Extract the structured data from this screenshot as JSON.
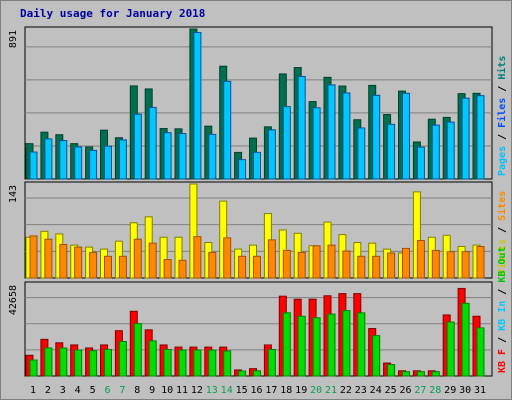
{
  "chart_data": [
    {
      "type": "bar",
      "title": "Daily usage for January 2018",
      "categories": [
        "1",
        "2",
        "3",
        "4",
        "5",
        "6",
        "7",
        "8",
        "9",
        "10",
        "11",
        "12",
        "13",
        "14",
        "15",
        "16",
        "17",
        "18",
        "19",
        "20",
        "21",
        "22",
        "23",
        "24",
        "25",
        "26",
        "27",
        "28",
        "29",
        "30",
        "31"
      ],
      "weekend_days": [
        "6",
        "7",
        "13",
        "14",
        "20",
        "21",
        "27",
        "28"
      ],
      "ymax_label": "891",
      "ylim": [
        0,
        891
      ],
      "series": [
        {
          "name": "Pages",
          "color": "#006f4f",
          "values": [
            210,
            278,
            263,
            210,
            190,
            290,
            245,
            553,
            535,
            300,
            298,
            891,
            314,
            670,
            158,
            243,
            310,
            624,
            662,
            460,
            604,
            552,
            352,
            556,
            383,
            522,
            220,
            355,
            366,
            507,
            509
          ]
        },
        {
          "name": "Files",
          "color": "#00c8ff",
          "values": [
            160,
            238,
            228,
            190,
            170,
            195,
            232,
            385,
            425,
            275,
            270,
            870,
            265,
            580,
            115,
            158,
            292,
            430,
            609,
            423,
            559,
            511,
            303,
            497,
            325,
            509,
            189,
            320,
            338,
            480,
            495
          ]
        }
      ],
      "legend": [
        {
          "text": "Pages",
          "color": "#00bfff"
        },
        {
          "text": " / ",
          "color": "#000000"
        },
        {
          "text": "Files",
          "color": "#0050ff"
        },
        {
          "text": " / ",
          "color": "#000000"
        },
        {
          "text": "Hits",
          "color": "#008080"
        }
      ]
    },
    {
      "type": "bar",
      "categories": [
        "1",
        "2",
        "3",
        "4",
        "5",
        "6",
        "7",
        "8",
        "9",
        "10",
        "11",
        "12",
        "13",
        "14",
        "15",
        "16",
        "17",
        "18",
        "19",
        "20",
        "21",
        "22",
        "23",
        "24",
        "25",
        "26",
        "27",
        "28",
        "29",
        "30",
        "31"
      ],
      "ymax_label": "143",
      "ylim": [
        0,
        143
      ],
      "series": [
        {
          "name": "Visits",
          "color": "#ffff00",
          "values": [
            62,
            71,
            67,
            50,
            47,
            44,
            56,
            84,
            93,
            62,
            62,
            143,
            54,
            117,
            44,
            50,
            98,
            73,
            68,
            49,
            85,
            66,
            54,
            53,
            44,
            38,
            131,
            62,
            65,
            48,
            50
          ]
        },
        {
          "name": "Sites",
          "color": "#ff8800",
          "values": [
            64,
            59,
            51,
            47,
            39,
            33,
            33,
            59,
            53,
            28,
            27,
            63,
            39,
            61,
            33,
            33,
            58,
            42,
            39,
            49,
            50,
            41,
            33,
            33,
            38,
            45,
            57,
            42,
            40,
            40,
            48
          ]
        }
      ],
      "legend": [
        {
          "text": "Visits",
          "color": "#c8c800"
        },
        {
          "text": " / ",
          "color": "#000000"
        },
        {
          "text": "Sites",
          "color": "#ff8800"
        }
      ]
    },
    {
      "type": "bar",
      "categories": [
        "1",
        "2",
        "3",
        "4",
        "5",
        "6",
        "7",
        "8",
        "9",
        "10",
        "11",
        "12",
        "13",
        "14",
        "15",
        "16",
        "17",
        "18",
        "19",
        "20",
        "21",
        "22",
        "23",
        "24",
        "25",
        "26",
        "27",
        "28",
        "29",
        "30",
        "31"
      ],
      "ymax_label": "42658",
      "ylim": [
        0,
        42658
      ],
      "series": [
        {
          "name": "KB F",
          "color": "#ff0000",
          "values": [
            9600,
            17000,
            15400,
            14400,
            13000,
            14400,
            21000,
            30000,
            21400,
            14400,
            13400,
            13400,
            13400,
            13400,
            2800,
            3400,
            14400,
            37000,
            35600,
            35600,
            37200,
            38200,
            38200,
            22000,
            6000,
            2400,
            2400,
            2400,
            28300,
            40600,
            27700
          ]
        },
        {
          "name": "KB Out",
          "color": "#00dd00",
          "values": [
            7400,
            13000,
            13000,
            12000,
            11700,
            12300,
            16000,
            24300,
            16300,
            12300,
            12000,
            12000,
            12000,
            11600,
            2300,
            2400,
            12300,
            29300,
            27700,
            27000,
            28700,
            30300,
            29300,
            18700,
            5300,
            2000,
            2000,
            2000,
            25000,
            33700,
            22300
          ]
        }
      ],
      "legend": [
        {
          "text": "KB F",
          "color": "#ff0000"
        },
        {
          "text": " / ",
          "color": "#000000"
        },
        {
          "text": "KB In",
          "color": "#00c8ff"
        },
        {
          "text": " / ",
          "color": "#000000"
        },
        {
          "text": "KB Out",
          "color": "#00c800"
        }
      ]
    }
  ],
  "colors": {
    "background": "#c0c0c0",
    "plot": "#c0c0c0",
    "grid": "#808080",
    "title": "#0000a0",
    "weekday_label": "#000000",
    "weekend_label": "#00a050"
  }
}
